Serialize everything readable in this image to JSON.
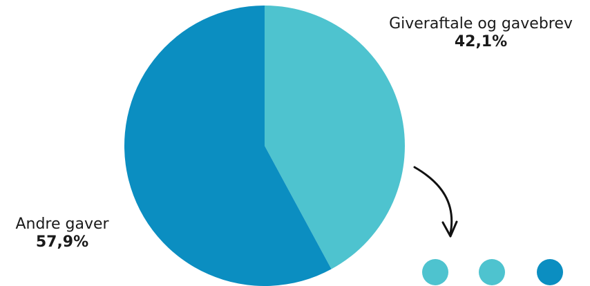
{
  "chart_data": {
    "type": "pie",
    "slices": [
      {
        "label": "Giveraftale og gavebrev",
        "value": 42.1,
        "value_label": "42,1%",
        "color": "#4EC3CF"
      },
      {
        "label": "Andre gaver",
        "value": 57.9,
        "value_label": "57,9%",
        "color": "#0B8EC1"
      }
    ],
    "start_angle": "12 o'clock",
    "direction": "clockwise"
  },
  "decor": {
    "arrow_color": "#111111",
    "dot_colors": [
      "#4EC3CF",
      "#4EC3CF",
      "#0B8EC1"
    ]
  }
}
